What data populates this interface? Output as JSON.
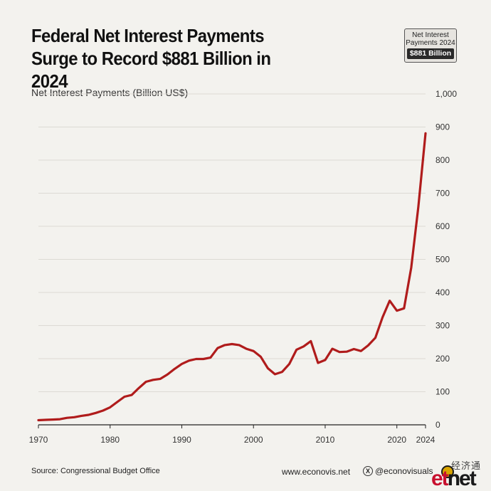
{
  "header": {
    "title": "Federal Net Interest Payments Surge to Record $881 Billion in 2024",
    "badge_label": "Net Interest Payments 2024",
    "badge_value": "$881 Billion"
  },
  "chart_data": {
    "type": "line",
    "title": "Federal Net Interest Payments Surge to Record $881 Billion in 2024",
    "ylabel": "Net Interest Payments (Billion US$)",
    "xlabel": "",
    "xlim": [
      1970,
      2024
    ],
    "ylim": [
      0,
      1000
    ],
    "x_ticks": [
      1970,
      1980,
      1990,
      2000,
      2010,
      2020,
      2024
    ],
    "y_ticks": [
      0,
      100,
      200,
      300,
      400,
      500,
      600,
      700,
      800,
      900,
      1000
    ],
    "y_tick_labels": [
      "0",
      "100",
      "200",
      "300",
      "400",
      "500",
      "600",
      "700",
      "800",
      "900",
      "1,000"
    ],
    "grid": true,
    "line_color": "#b01c1c",
    "series": [
      {
        "name": "",
        "x": [
          1970,
          1971,
          1972,
          1973,
          1974,
          1975,
          1976,
          1977,
          1978,
          1979,
          1980,
          1981,
          1982,
          1983,
          1984,
          1985,
          1986,
          1987,
          1988,
          1989,
          1990,
          1991,
          1992,
          1993,
          1994,
          1995,
          1996,
          1997,
          1998,
          1999,
          2000,
          2001,
          2002,
          2003,
          2004,
          2005,
          2006,
          2007,
          2008,
          2009,
          2010,
          2011,
          2012,
          2013,
          2014,
          2015,
          2016,
          2017,
          2018,
          2019,
          2020,
          2021,
          2022,
          2023,
          2024
        ],
        "values": [
          14,
          15,
          16,
          17,
          21,
          23,
          27,
          30,
          36,
          43,
          53,
          69,
          85,
          90,
          111,
          130,
          136,
          139,
          152,
          169,
          184,
          194,
          199,
          199,
          203,
          232,
          241,
          244,
          241,
          230,
          223,
          206,
          171,
          153,
          160,
          184,
          227,
          237,
          253,
          187,
          196,
          230,
          220,
          221,
          229,
          223,
          240,
          263,
          325,
          375,
          345,
          352,
          475,
          659,
          881
        ]
      }
    ]
  },
  "footer": {
    "source": "Source: Congressional Budget Office",
    "website": "www.econovis.net",
    "social_icon": "x-logo-icon",
    "social_handle": "@econovisuals",
    "logo_text_cn": "经济通",
    "logo_mark_e": "et",
    "logo_mark_n": "net"
  }
}
